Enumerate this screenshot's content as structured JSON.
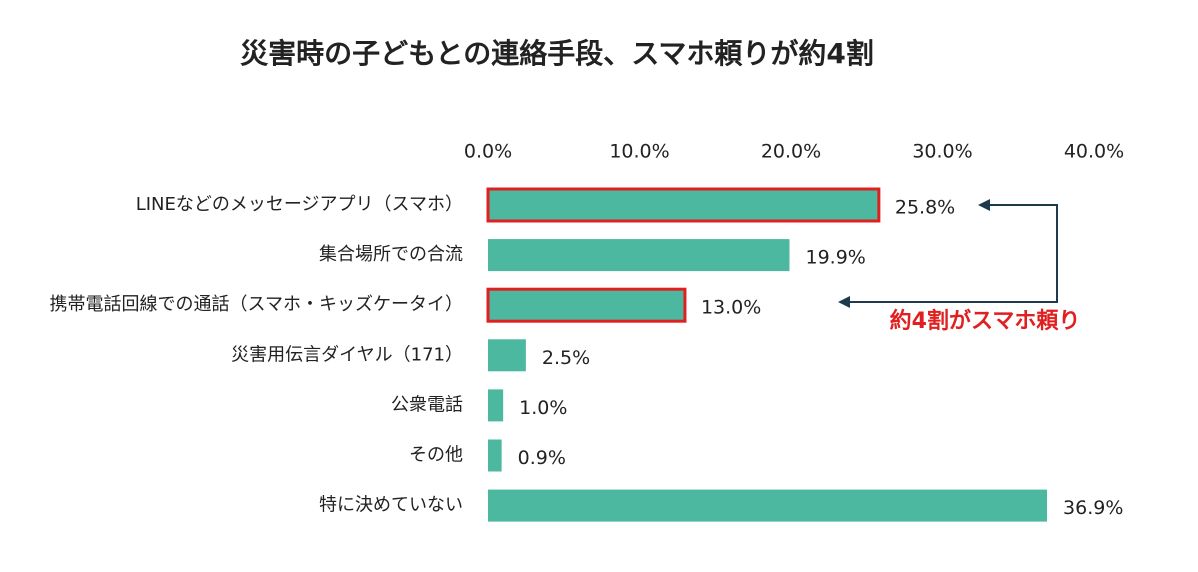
{
  "chart_data": {
    "type": "bar",
    "orientation": "horizontal",
    "title": "災害時の子どもとの連絡手段、スマホ頼りが約4割",
    "categories": [
      "LINEなどのメッセージアプリ（スマホ）",
      "集合場所での合流",
      "携帯電話回線での通話（スマホ・キッズケータイ）",
      "災害用伝言ダイヤル（171）",
      "公衆電話",
      "その他",
      "特に決めていない"
    ],
    "values": [
      25.8,
      19.9,
      13.0,
      2.5,
      1.0,
      0.9,
      36.9
    ],
    "value_labels": [
      "25.8%",
      "19.9%",
      "13.0%",
      "2.5%",
      "1.0%",
      "0.9%",
      "36.9%"
    ],
    "color": "#4db8a0",
    "highlight": [
      0,
      2
    ],
    "highlight_color": "#e02020",
    "xlim": [
      0,
      40
    ],
    "xticks": [
      {
        "value": 0,
        "label": "0.0%"
      },
      {
        "value": 10,
        "label": "10.0%"
      },
      {
        "value": 20,
        "label": "20.0%"
      },
      {
        "value": 30,
        "label": "30.0%"
      },
      {
        "value": 40,
        "label": "40.0%"
      }
    ],
    "grid": false,
    "annotation": "約4割がスマホ頼り"
  }
}
